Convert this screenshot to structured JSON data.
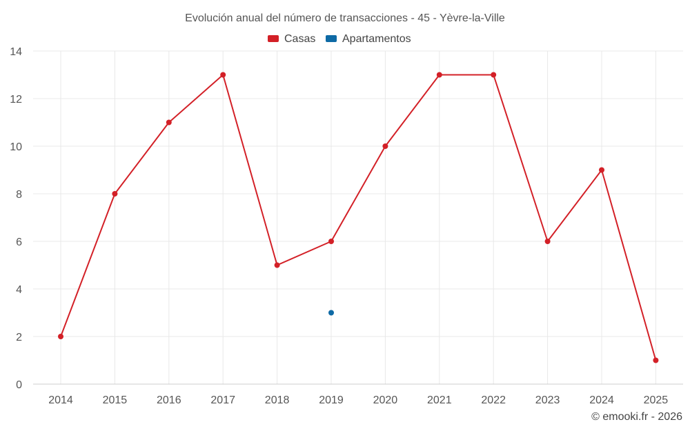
{
  "chart_data": {
    "type": "line",
    "title": "Evolución anual del número de transacciones - 45 - Yèvre-la-Ville",
    "categories": [
      "2014",
      "2015",
      "2016",
      "2017",
      "2018",
      "2019",
      "2020",
      "2021",
      "2022",
      "2023",
      "2024",
      "2025"
    ],
    "series": [
      {
        "name": "Casas",
        "color": "#d32027",
        "values": [
          2,
          8,
          11,
          13,
          5,
          6,
          10,
          13,
          13,
          6,
          9,
          1
        ]
      },
      {
        "name": "Apartamentos",
        "color": "#0e6aa5",
        "values": [
          null,
          null,
          null,
          null,
          null,
          3,
          null,
          null,
          null,
          null,
          null,
          null
        ]
      }
    ],
    "ylim": [
      0,
      14
    ],
    "yticks": [
      0,
      2,
      4,
      6,
      8,
      10,
      12,
      14
    ],
    "grid": true,
    "legend_position": "top-center",
    "xlabel": "",
    "ylabel": ""
  },
  "credit": "© emooki.fr - 2026"
}
